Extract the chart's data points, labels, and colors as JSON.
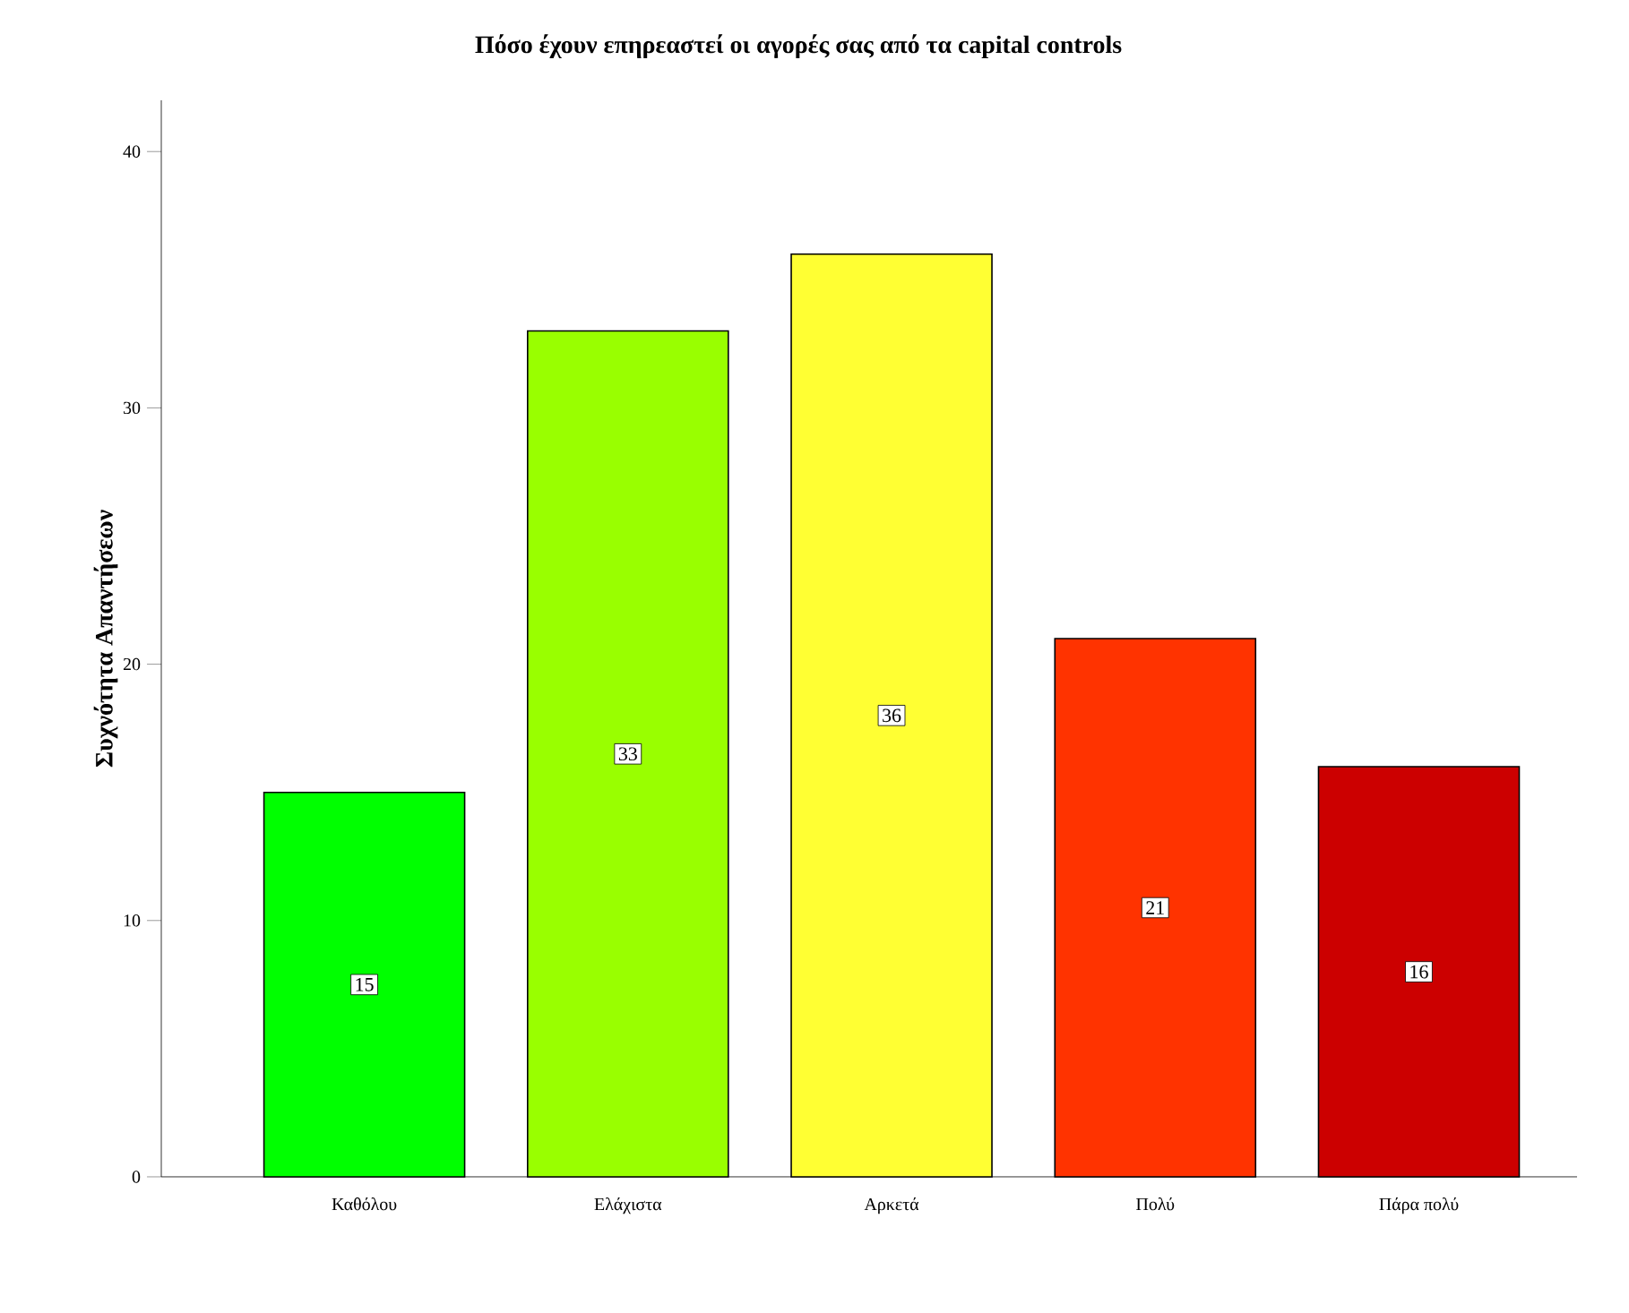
{
  "chart_data": {
    "type": "bar",
    "title": "Πόσο έχουν επηρεαστεί οι αγορές σας από τα capital controls",
    "ylabel": "Συχνότητα Απαντήσεων",
    "categories": [
      "Καθόλου",
      "Ελάχιστα",
      "Αρκετά",
      "Πολύ",
      "Πάρα πολύ"
    ],
    "values": [
      15,
      33,
      36,
      21,
      16
    ],
    "colors": [
      "#00ff00",
      "#99ff00",
      "#ffff33",
      "#ff3300",
      "#cc0000"
    ],
    "ylim": [
      0,
      42
    ],
    "yticks": [
      0,
      10,
      20,
      30,
      40
    ],
    "data_labels": true,
    "grid": false
  }
}
